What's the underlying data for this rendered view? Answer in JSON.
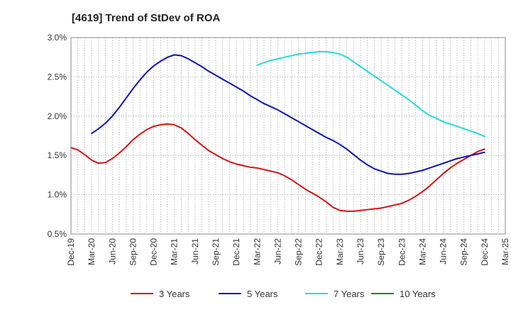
{
  "chart_data": {
    "type": "line",
    "title": "[4619]  Trend of StDev of ROA",
    "y_unit": "%",
    "y_ticks": [
      "3.0%",
      "2.5%",
      "2.0%",
      "1.5%",
      "1.0%",
      "0.5%"
    ],
    "y_tick_values": [
      3.0,
      2.5,
      2.0,
      1.5,
      1.0,
      0.5
    ],
    "ylim": [
      0.5,
      3.0
    ],
    "x_tick_labels": [
      "Dec-19",
      "Mar-20",
      "Jun-20",
      "Sep-20",
      "Dec-20",
      "Mar-21",
      "Jun-21",
      "Sep-21",
      "Dec-21",
      "Mar-22",
      "Jun-22",
      "Sep-22",
      "Dec-22",
      "Mar-23",
      "Jun-23",
      "Sep-23",
      "Dec-23",
      "Mar-24",
      "Jun-24",
      "Sep-24",
      "Dec-24",
      "Mar-25"
    ],
    "x_range": [
      "2019-12",
      "2025-03"
    ],
    "grid": true,
    "legend_position": "bottom",
    "series": [
      {
        "name": "3 Years",
        "color": "#dd1111",
        "points": [
          [
            "2019-12",
            1.6
          ],
          [
            "2020-01",
            1.57
          ],
          [
            "2020-02",
            1.51
          ],
          [
            "2020-03",
            1.44
          ],
          [
            "2020-04",
            1.4
          ],
          [
            "2020-05",
            1.41
          ],
          [
            "2020-06",
            1.46
          ],
          [
            "2020-07",
            1.53
          ],
          [
            "2020-08",
            1.61
          ],
          [
            "2020-09",
            1.7
          ],
          [
            "2020-10",
            1.77
          ],
          [
            "2020-11",
            1.83
          ],
          [
            "2020-12",
            1.87
          ],
          [
            "2021-01",
            1.89
          ],
          [
            "2021-02",
            1.9
          ],
          [
            "2021-03",
            1.89
          ],
          [
            "2021-04",
            1.85
          ],
          [
            "2021-05",
            1.78
          ],
          [
            "2021-06",
            1.7
          ],
          [
            "2021-07",
            1.63
          ],
          [
            "2021-08",
            1.56
          ],
          [
            "2021-09",
            1.51
          ],
          [
            "2021-10",
            1.46
          ],
          [
            "2021-11",
            1.42
          ],
          [
            "2021-12",
            1.39
          ],
          [
            "2022-01",
            1.37
          ],
          [
            "2022-02",
            1.35
          ],
          [
            "2022-03",
            1.34
          ],
          [
            "2022-04",
            1.32
          ],
          [
            "2022-05",
            1.3
          ],
          [
            "2022-06",
            1.28
          ],
          [
            "2022-07",
            1.24
          ],
          [
            "2022-08",
            1.19
          ],
          [
            "2022-09",
            1.13
          ],
          [
            "2022-10",
            1.07
          ],
          [
            "2022-11",
            1.02
          ],
          [
            "2022-12",
            0.97
          ],
          [
            "2023-01",
            0.91
          ],
          [
            "2023-02",
            0.84
          ],
          [
            "2023-03",
            0.8
          ],
          [
            "2023-04",
            0.79
          ],
          [
            "2023-05",
            0.79
          ],
          [
            "2023-06",
            0.8
          ],
          [
            "2023-07",
            0.81
          ],
          [
            "2023-08",
            0.82
          ],
          [
            "2023-09",
            0.83
          ],
          [
            "2023-10",
            0.85
          ],
          [
            "2023-11",
            0.87
          ],
          [
            "2023-12",
            0.89
          ],
          [
            "2024-01",
            0.93
          ],
          [
            "2024-02",
            0.98
          ],
          [
            "2024-03",
            1.04
          ],
          [
            "2024-04",
            1.11
          ],
          [
            "2024-05",
            1.19
          ],
          [
            "2024-06",
            1.27
          ],
          [
            "2024-07",
            1.34
          ],
          [
            "2024-08",
            1.4
          ],
          [
            "2024-09",
            1.45
          ],
          [
            "2024-10",
            1.5
          ],
          [
            "2024-11",
            1.55
          ],
          [
            "2024-12",
            1.58
          ]
        ]
      },
      {
        "name": "5 Years",
        "color": "#1111bb",
        "points": [
          [
            "2020-03",
            1.78
          ],
          [
            "2020-04",
            1.84
          ],
          [
            "2020-05",
            1.91
          ],
          [
            "2020-06",
            2.0
          ],
          [
            "2020-07",
            2.11
          ],
          [
            "2020-08",
            2.23
          ],
          [
            "2020-09",
            2.35
          ],
          [
            "2020-10",
            2.46
          ],
          [
            "2020-11",
            2.56
          ],
          [
            "2020-12",
            2.64
          ],
          [
            "2021-01",
            2.7
          ],
          [
            "2021-02",
            2.75
          ],
          [
            "2021-03",
            2.78
          ],
          [
            "2021-04",
            2.77
          ],
          [
            "2021-05",
            2.73
          ],
          [
            "2021-06",
            2.68
          ],
          [
            "2021-07",
            2.63
          ],
          [
            "2021-08",
            2.57
          ],
          [
            "2021-09",
            2.52
          ],
          [
            "2021-10",
            2.47
          ],
          [
            "2021-11",
            2.42
          ],
          [
            "2021-12",
            2.37
          ],
          [
            "2022-01",
            2.32
          ],
          [
            "2022-02",
            2.26
          ],
          [
            "2022-03",
            2.21
          ],
          [
            "2022-04",
            2.16
          ],
          [
            "2022-05",
            2.12
          ],
          [
            "2022-06",
            2.08
          ],
          [
            "2022-07",
            2.03
          ],
          [
            "2022-08",
            1.98
          ],
          [
            "2022-09",
            1.93
          ],
          [
            "2022-10",
            1.88
          ],
          [
            "2022-11",
            1.83
          ],
          [
            "2022-12",
            1.78
          ],
          [
            "2023-01",
            1.73
          ],
          [
            "2023-02",
            1.69
          ],
          [
            "2023-03",
            1.64
          ],
          [
            "2023-04",
            1.58
          ],
          [
            "2023-05",
            1.51
          ],
          [
            "2023-06",
            1.44
          ],
          [
            "2023-07",
            1.38
          ],
          [
            "2023-08",
            1.33
          ],
          [
            "2023-09",
            1.3
          ],
          [
            "2023-10",
            1.27
          ],
          [
            "2023-11",
            1.26
          ],
          [
            "2023-12",
            1.26
          ],
          [
            "2024-01",
            1.27
          ],
          [
            "2024-02",
            1.29
          ],
          [
            "2024-03",
            1.31
          ],
          [
            "2024-04",
            1.34
          ],
          [
            "2024-05",
            1.37
          ],
          [
            "2024-06",
            1.4
          ],
          [
            "2024-07",
            1.43
          ],
          [
            "2024-08",
            1.46
          ],
          [
            "2024-09",
            1.48
          ],
          [
            "2024-10",
            1.5
          ],
          [
            "2024-11",
            1.52
          ],
          [
            "2024-12",
            1.54
          ]
        ]
      },
      {
        "name": "7 Years",
        "color": "#22dddd",
        "points": [
          [
            "2022-03",
            2.65
          ],
          [
            "2022-04",
            2.68
          ],
          [
            "2022-05",
            2.71
          ],
          [
            "2022-06",
            2.73
          ],
          [
            "2022-07",
            2.75
          ],
          [
            "2022-08",
            2.77
          ],
          [
            "2022-09",
            2.79
          ],
          [
            "2022-10",
            2.8
          ],
          [
            "2022-11",
            2.81
          ],
          [
            "2022-12",
            2.82
          ],
          [
            "2023-01",
            2.82
          ],
          [
            "2023-02",
            2.81
          ],
          [
            "2023-03",
            2.79
          ],
          [
            "2023-04",
            2.75
          ],
          [
            "2023-05",
            2.69
          ],
          [
            "2023-06",
            2.63
          ],
          [
            "2023-07",
            2.57
          ],
          [
            "2023-08",
            2.51
          ],
          [
            "2023-09",
            2.45
          ],
          [
            "2023-10",
            2.39
          ],
          [
            "2023-11",
            2.33
          ],
          [
            "2023-12",
            2.27
          ],
          [
            "2024-01",
            2.21
          ],
          [
            "2024-02",
            2.14
          ],
          [
            "2024-03",
            2.07
          ],
          [
            "2024-04",
            2.01
          ],
          [
            "2024-05",
            1.97
          ],
          [
            "2024-06",
            1.93
          ],
          [
            "2024-07",
            1.9
          ],
          [
            "2024-08",
            1.87
          ],
          [
            "2024-09",
            1.84
          ],
          [
            "2024-10",
            1.81
          ],
          [
            "2024-11",
            1.78
          ],
          [
            "2024-12",
            1.74
          ]
        ]
      },
      {
        "name": "10 Years",
        "color": "#118811",
        "points": []
      }
    ]
  }
}
